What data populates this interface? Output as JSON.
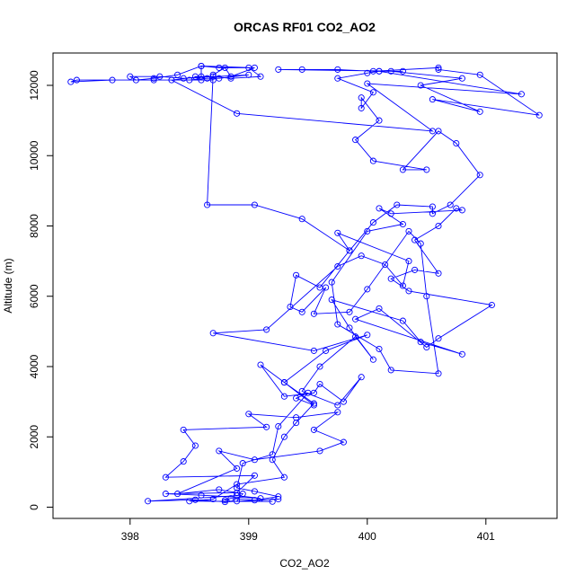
{
  "chart_data": {
    "type": "scatter",
    "title": "ORCAS RF01 CO2_AO2",
    "xlabel": "CO2_AO2",
    "ylabel": "Altitude (m)",
    "xlim": [
      397.35,
      401.6
    ],
    "ylim": [
      -320,
      12920
    ],
    "xticks": [
      398,
      399,
      400,
      401
    ],
    "yticks": [
      0,
      2000,
      4000,
      6000,
      8000,
      10000,
      12000
    ],
    "grid": false,
    "legend": "none",
    "connected": true,
    "colors": {
      "series": "#0000ff",
      "axis": "#000000",
      "background": "#ffffff"
    },
    "series": [
      {
        "values": [
          [
            399.25,
            230
          ],
          [
            398.8,
            150
          ],
          [
            398.55,
            210
          ],
          [
            398.15,
            170
          ],
          [
            398.9,
            330
          ],
          [
            399.1,
            250
          ],
          [
            398.6,
            340
          ],
          [
            398.3,
            380
          ],
          [
            398.9,
            410
          ],
          [
            399.05,
            900
          ],
          [
            398.3,
            850
          ],
          [
            398.45,
            1300
          ],
          [
            398.55,
            1750
          ],
          [
            398.45,
            2200
          ],
          [
            399.15,
            2280
          ],
          [
            399.0,
            2650
          ],
          [
            399.4,
            2550
          ],
          [
            399.75,
            2700
          ],
          [
            399.55,
            2200
          ],
          [
            399.8,
            1850
          ],
          [
            399.6,
            1600
          ],
          [
            399.05,
            1350
          ],
          [
            398.75,
            1600
          ],
          [
            398.9,
            1100
          ],
          [
            398.4,
            380
          ],
          [
            398.75,
            500
          ],
          [
            398.95,
            380
          ],
          [
            398.9,
            170
          ],
          [
            399.2,
            160
          ],
          [
            398.5,
            170
          ],
          [
            398.7,
            230
          ],
          [
            398.9,
            650
          ],
          [
            399.3,
            850
          ],
          [
            399.2,
            1350
          ],
          [
            399.3,
            2000
          ],
          [
            399.4,
            2400
          ],
          [
            399.55,
            2950
          ],
          [
            399.3,
            3550
          ],
          [
            399.1,
            4050
          ],
          [
            399.3,
            3150
          ],
          [
            399.55,
            3250
          ],
          [
            399.6,
            3500
          ],
          [
            399.8,
            3000
          ],
          [
            399.95,
            3700
          ],
          [
            399.75,
            2900
          ],
          [
            399.45,
            3300
          ],
          [
            399.6,
            4000
          ],
          [
            399.9,
            4850
          ],
          [
            400.05,
            4200
          ],
          [
            399.85,
            5100
          ],
          [
            399.7,
            5900
          ],
          [
            400.3,
            5300
          ],
          [
            400.45,
            4700
          ],
          [
            400.8,
            4350
          ],
          [
            399.9,
            5350
          ],
          [
            400.1,
            5650
          ],
          [
            400.5,
            4550
          ],
          [
            400.6,
            4800
          ],
          [
            401.05,
            5750
          ],
          [
            400.35,
            6150
          ],
          [
            400.2,
            6500
          ],
          [
            400.4,
            6750
          ],
          [
            400.6,
            6650
          ],
          [
            400.4,
            7600
          ],
          [
            400.6,
            8000
          ],
          [
            400.75,
            8500
          ],
          [
            400.8,
            8450
          ],
          [
            400.2,
            8350
          ],
          [
            400.1,
            8500
          ],
          [
            400.3,
            8050
          ],
          [
            400.0,
            7850
          ],
          [
            399.7,
            6400
          ],
          [
            399.75,
            5200
          ],
          [
            400.1,
            4500
          ],
          [
            400.2,
            3900
          ],
          [
            400.6,
            3800
          ],
          [
            400.5,
            6000
          ],
          [
            400.45,
            7500
          ],
          [
            400.35,
            7850
          ],
          [
            400.0,
            6200
          ],
          [
            399.85,
            5550
          ],
          [
            399.55,
            5500
          ],
          [
            399.65,
            6250
          ],
          [
            399.45,
            5550
          ],
          [
            399.35,
            5700
          ],
          [
            399.4,
            6600
          ],
          [
            399.6,
            6250
          ],
          [
            399.85,
            7300
          ],
          [
            400.05,
            8100
          ],
          [
            400.25,
            8600
          ],
          [
            400.55,
            8550
          ],
          [
            400.55,
            8350
          ],
          [
            400.7,
            8600
          ],
          [
            400.95,
            9450
          ],
          [
            400.75,
            10350
          ],
          [
            400.6,
            10700
          ],
          [
            400.3,
            9600
          ],
          [
            400.5,
            9600
          ],
          [
            400.05,
            9850
          ],
          [
            399.9,
            10450
          ],
          [
            400.1,
            11000
          ],
          [
            399.95,
            11650
          ],
          [
            399.95,
            11350
          ],
          [
            400.05,
            11800
          ],
          [
            399.75,
            12200
          ],
          [
            400.0,
            12350
          ],
          [
            400.1,
            12400
          ],
          [
            400.2,
            12400
          ],
          [
            400.8,
            12200
          ],
          [
            400.45,
            12000
          ],
          [
            400.95,
            11250
          ],
          [
            400.55,
            11600
          ],
          [
            401.45,
            11150
          ],
          [
            400.95,
            12300
          ],
          [
            400.6,
            12450
          ],
          [
            400.6,
            12500
          ],
          [
            400.05,
            12400
          ],
          [
            399.75,
            12450
          ],
          [
            399.45,
            12450
          ],
          [
            399.25,
            12450
          ],
          [
            400.3,
            12400
          ],
          [
            400.1,
            12400
          ],
          [
            401.3,
            11750
          ],
          [
            400.0,
            12050
          ],
          [
            400.55,
            10700
          ],
          [
            398.9,
            11200
          ],
          [
            398.35,
            12150
          ],
          [
            398.6,
            12250
          ],
          [
            398.6,
            12550
          ],
          [
            398.75,
            12500
          ],
          [
            399.0,
            12500
          ],
          [
            399.1,
            12250
          ],
          [
            398.85,
            12200
          ],
          [
            398.7,
            12250
          ],
          [
            398.55,
            12250
          ],
          [
            398.6,
            12150
          ],
          [
            398.7,
            12150
          ],
          [
            398.2,
            12150
          ],
          [
            397.85,
            12150
          ],
          [
            397.5,
            12100
          ],
          [
            397.55,
            12150
          ],
          [
            398.5,
            12150
          ],
          [
            398.65,
            12200
          ],
          [
            398.75,
            12200
          ],
          [
            399.0,
            12300
          ],
          [
            398.45,
            12200
          ],
          [
            398.25,
            12250
          ],
          [
            398.0,
            12250
          ],
          [
            398.05,
            12150
          ],
          [
            398.2,
            12200
          ],
          [
            398.4,
            12300
          ],
          [
            398.6,
            12550
          ],
          [
            399.05,
            12500
          ],
          [
            398.85,
            12250
          ],
          [
            398.8,
            12500
          ],
          [
            398.7,
            12300
          ],
          [
            398.65,
            8600
          ],
          [
            399.05,
            8600
          ],
          [
            399.45,
            8200
          ],
          [
            399.85,
            7300
          ],
          [
            399.75,
            7800
          ],
          [
            400.35,
            7000
          ],
          [
            400.3,
            6300
          ],
          [
            400.15,
            6900
          ],
          [
            399.95,
            7150
          ],
          [
            399.75,
            6850
          ],
          [
            399.15,
            5050
          ],
          [
            398.7,
            4950
          ],
          [
            399.55,
            4450
          ],
          [
            400.0,
            4900
          ],
          [
            399.65,
            4450
          ],
          [
            399.3,
            3550
          ],
          [
            399.55,
            2900
          ],
          [
            399.4,
            3100
          ],
          [
            399.5,
            3250
          ],
          [
            399.25,
            2300
          ],
          [
            399.2,
            1500
          ],
          [
            398.95,
            1250
          ],
          [
            398.9,
            550
          ],
          [
            399.05,
            450
          ],
          [
            399.25,
            300
          ],
          [
            399.05,
            200
          ],
          [
            398.85,
            250
          ],
          [
            398.8,
            200
          ]
        ]
      }
    ]
  }
}
